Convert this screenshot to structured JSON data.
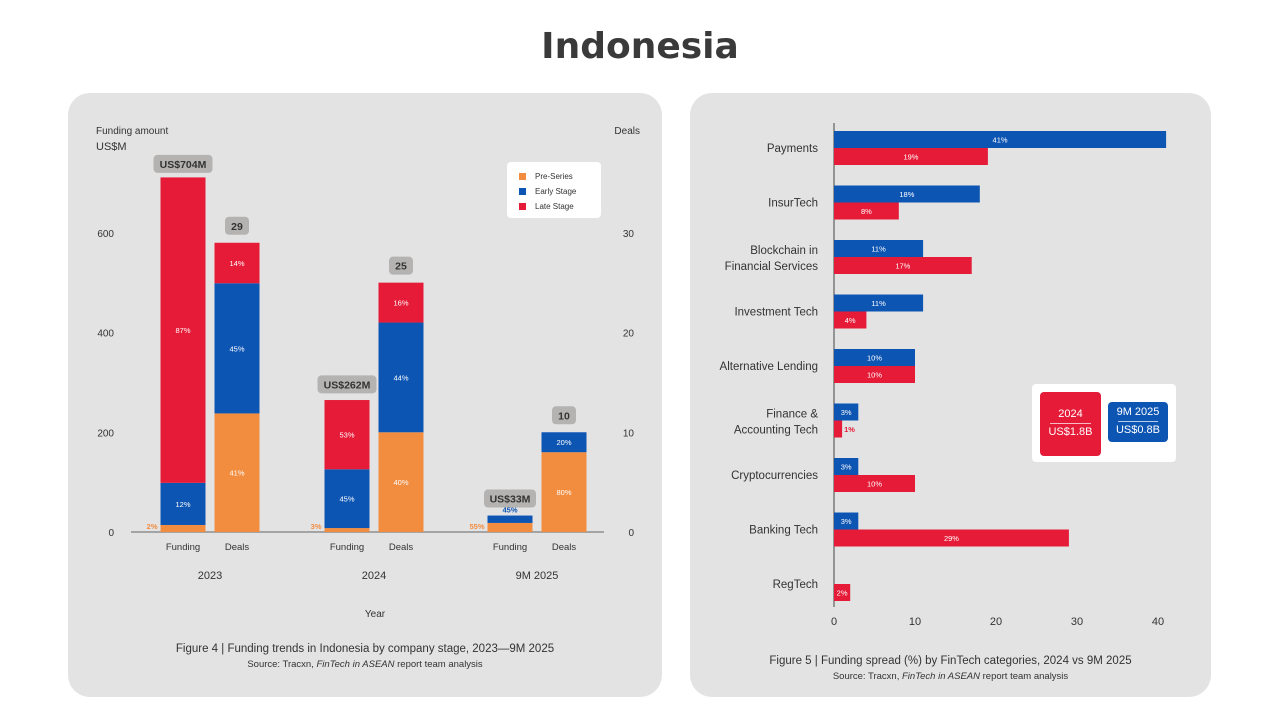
{
  "page_title": "Indonesia",
  "colors": {
    "pre_series": "#f28d3f",
    "early_stage": "#0d55b3",
    "late_stage": "#e51b38",
    "panel_bg": "#e3e3e4"
  },
  "left_chart": {
    "y_axis_title_line1": "Funding amount",
    "y_axis_title_line2": "US$M",
    "y2_axis_title": "Deals",
    "x_axis_title": "Year",
    "caption": "Figure 4 | Funding trends in Indonesia by company stage, 2023—9M 2025",
    "source_prefix": "Source: Tracxn, ",
    "source_italic": "FinTech in ASEAN",
    "source_suffix": " report team analysis",
    "legend": [
      "Pre-Series",
      "Early Stage",
      "Late Stage"
    ]
  },
  "right_chart": {
    "caption": "Figure 5 | Funding spread (%) by FinTech categories, 2024 vs 9M 2025",
    "source_prefix": "Source: Tracxn, ",
    "source_italic": "FinTech in ASEAN",
    "source_suffix": " report team analysis",
    "totals": [
      {
        "period": "2024",
        "amount": "US$1.8B"
      },
      {
        "period": "9M 2025",
        "amount": "US$0.8B"
      }
    ]
  },
  "chart_data": [
    {
      "type": "bar",
      "stacked": true,
      "y_ticks": [
        0,
        200,
        400,
        600
      ],
      "y2_ticks": [
        0,
        10,
        20,
        30
      ],
      "ylim": [
        0,
        760
      ],
      "y2lim": [
        0,
        38
      ],
      "groups": [
        {
          "year": "2023",
          "funding": {
            "label": "Funding",
            "total": 704,
            "total_label": "US$704M",
            "shares": [
              2,
              12,
              87
            ],
            "share_labels": [
              "2%",
              "12%",
              "87%"
            ]
          },
          "deals": {
            "label": "Deals",
            "total": 29,
            "total_label": "29",
            "shares": [
              41,
              45,
              14
            ],
            "share_labels": [
              "41%",
              "45%",
              "14%"
            ]
          }
        },
        {
          "year": "2024",
          "funding": {
            "label": "Funding",
            "total": 262,
            "total_label": "US$262M",
            "shares": [
              3,
              45,
              53
            ],
            "share_labels": [
              "3%",
              "45%",
              "53%"
            ]
          },
          "deals": {
            "label": "Deals",
            "total": 25,
            "total_label": "25",
            "shares": [
              40,
              44,
              16
            ],
            "share_labels": [
              "40%",
              "44%",
              "16%"
            ]
          }
        },
        {
          "year": "9M 2025",
          "funding": {
            "label": "Funding",
            "total": 33,
            "total_label": "US$33M",
            "shares": [
              55,
              45,
              0
            ],
            "share_labels": [
              "55%",
              "45%",
              ""
            ]
          },
          "deals": {
            "label": "Deals",
            "total": 10,
            "total_label": "10",
            "shares": [
              80,
              20,
              0
            ],
            "share_labels": [
              "80%",
              "20%",
              ""
            ]
          }
        }
      ],
      "series": [
        "Pre-Series",
        "Early Stage",
        "Late Stage"
      ]
    },
    {
      "type": "bar",
      "orientation": "horizontal",
      "x_ticks": [
        0,
        10,
        20,
        30,
        40
      ],
      "xlim": [
        0,
        40
      ],
      "series": [
        "9M 2025",
        "2024"
      ],
      "categories": [
        {
          "label": [
            "Payments"
          ],
          "v9m2025": 41,
          "v2024": 19
        },
        {
          "label": [
            "InsurTech"
          ],
          "v9m2025": 18,
          "v2024": 8
        },
        {
          "label": [
            "Blockchain in",
            "Financial Services"
          ],
          "v9m2025": 11,
          "v2024": 17
        },
        {
          "label": [
            "Investment Tech"
          ],
          "v9m2025": 11,
          "v2024": 4
        },
        {
          "label": [
            "Alternative Lending"
          ],
          "v9m2025": 10,
          "v2024": 10
        },
        {
          "label": [
            "Finance &",
            "Accounting Tech"
          ],
          "v9m2025": 3,
          "v2024": 1
        },
        {
          "label": [
            "Cryptocurrencies"
          ],
          "v9m2025": 3,
          "v2024": 10
        },
        {
          "label": [
            "Banking Tech"
          ],
          "v9m2025": 3,
          "v2024": 29
        },
        {
          "label": [
            "RegTech"
          ],
          "v9m2025": null,
          "v2024": 2
        }
      ]
    }
  ]
}
